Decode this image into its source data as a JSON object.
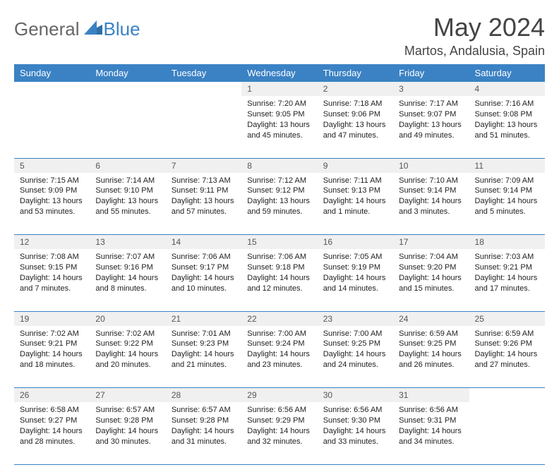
{
  "logo": {
    "text_a": "General",
    "text_b": "Blue"
  },
  "title": "May 2024",
  "location": "Martos, Andalusia, Spain",
  "colors": {
    "header_bg": "#3b82c4",
    "header_fg": "#ffffff",
    "daynum_bg": "#f0f0f0",
    "row_border": "#3b82c4",
    "body_text": "#222222"
  },
  "day_headers": [
    "Sunday",
    "Monday",
    "Tuesday",
    "Wednesday",
    "Thursday",
    "Friday",
    "Saturday"
  ],
  "weeks": [
    {
      "nums": [
        "",
        "",
        "",
        "1",
        "2",
        "3",
        "4"
      ],
      "cells": [
        {
          "sunrise": "",
          "sunset": "",
          "daylight": ""
        },
        {
          "sunrise": "",
          "sunset": "",
          "daylight": ""
        },
        {
          "sunrise": "",
          "sunset": "",
          "daylight": ""
        },
        {
          "sunrise": "Sunrise: 7:20 AM",
          "sunset": "Sunset: 9:05 PM",
          "daylight": "Daylight: 13 hours and 45 minutes."
        },
        {
          "sunrise": "Sunrise: 7:18 AM",
          "sunset": "Sunset: 9:06 PM",
          "daylight": "Daylight: 13 hours and 47 minutes."
        },
        {
          "sunrise": "Sunrise: 7:17 AM",
          "sunset": "Sunset: 9:07 PM",
          "daylight": "Daylight: 13 hours and 49 minutes."
        },
        {
          "sunrise": "Sunrise: 7:16 AM",
          "sunset": "Sunset: 9:08 PM",
          "daylight": "Daylight: 13 hours and 51 minutes."
        }
      ]
    },
    {
      "nums": [
        "5",
        "6",
        "7",
        "8",
        "9",
        "10",
        "11"
      ],
      "cells": [
        {
          "sunrise": "Sunrise: 7:15 AM",
          "sunset": "Sunset: 9:09 PM",
          "daylight": "Daylight: 13 hours and 53 minutes."
        },
        {
          "sunrise": "Sunrise: 7:14 AM",
          "sunset": "Sunset: 9:10 PM",
          "daylight": "Daylight: 13 hours and 55 minutes."
        },
        {
          "sunrise": "Sunrise: 7:13 AM",
          "sunset": "Sunset: 9:11 PM",
          "daylight": "Daylight: 13 hours and 57 minutes."
        },
        {
          "sunrise": "Sunrise: 7:12 AM",
          "sunset": "Sunset: 9:12 PM",
          "daylight": "Daylight: 13 hours and 59 minutes."
        },
        {
          "sunrise": "Sunrise: 7:11 AM",
          "sunset": "Sunset: 9:13 PM",
          "daylight": "Daylight: 14 hours and 1 minute."
        },
        {
          "sunrise": "Sunrise: 7:10 AM",
          "sunset": "Sunset: 9:14 PM",
          "daylight": "Daylight: 14 hours and 3 minutes."
        },
        {
          "sunrise": "Sunrise: 7:09 AM",
          "sunset": "Sunset: 9:14 PM",
          "daylight": "Daylight: 14 hours and 5 minutes."
        }
      ]
    },
    {
      "nums": [
        "12",
        "13",
        "14",
        "15",
        "16",
        "17",
        "18"
      ],
      "cells": [
        {
          "sunrise": "Sunrise: 7:08 AM",
          "sunset": "Sunset: 9:15 PM",
          "daylight": "Daylight: 14 hours and 7 minutes."
        },
        {
          "sunrise": "Sunrise: 7:07 AM",
          "sunset": "Sunset: 9:16 PM",
          "daylight": "Daylight: 14 hours and 8 minutes."
        },
        {
          "sunrise": "Sunrise: 7:06 AM",
          "sunset": "Sunset: 9:17 PM",
          "daylight": "Daylight: 14 hours and 10 minutes."
        },
        {
          "sunrise": "Sunrise: 7:06 AM",
          "sunset": "Sunset: 9:18 PM",
          "daylight": "Daylight: 14 hours and 12 minutes."
        },
        {
          "sunrise": "Sunrise: 7:05 AM",
          "sunset": "Sunset: 9:19 PM",
          "daylight": "Daylight: 14 hours and 14 minutes."
        },
        {
          "sunrise": "Sunrise: 7:04 AM",
          "sunset": "Sunset: 9:20 PM",
          "daylight": "Daylight: 14 hours and 15 minutes."
        },
        {
          "sunrise": "Sunrise: 7:03 AM",
          "sunset": "Sunset: 9:21 PM",
          "daylight": "Daylight: 14 hours and 17 minutes."
        }
      ]
    },
    {
      "nums": [
        "19",
        "20",
        "21",
        "22",
        "23",
        "24",
        "25"
      ],
      "cells": [
        {
          "sunrise": "Sunrise: 7:02 AM",
          "sunset": "Sunset: 9:21 PM",
          "daylight": "Daylight: 14 hours and 18 minutes."
        },
        {
          "sunrise": "Sunrise: 7:02 AM",
          "sunset": "Sunset: 9:22 PM",
          "daylight": "Daylight: 14 hours and 20 minutes."
        },
        {
          "sunrise": "Sunrise: 7:01 AM",
          "sunset": "Sunset: 9:23 PM",
          "daylight": "Daylight: 14 hours and 21 minutes."
        },
        {
          "sunrise": "Sunrise: 7:00 AM",
          "sunset": "Sunset: 9:24 PM",
          "daylight": "Daylight: 14 hours and 23 minutes."
        },
        {
          "sunrise": "Sunrise: 7:00 AM",
          "sunset": "Sunset: 9:25 PM",
          "daylight": "Daylight: 14 hours and 24 minutes."
        },
        {
          "sunrise": "Sunrise: 6:59 AM",
          "sunset": "Sunset: 9:25 PM",
          "daylight": "Daylight: 14 hours and 26 minutes."
        },
        {
          "sunrise": "Sunrise: 6:59 AM",
          "sunset": "Sunset: 9:26 PM",
          "daylight": "Daylight: 14 hours and 27 minutes."
        }
      ]
    },
    {
      "nums": [
        "26",
        "27",
        "28",
        "29",
        "30",
        "31",
        ""
      ],
      "cells": [
        {
          "sunrise": "Sunrise: 6:58 AM",
          "sunset": "Sunset: 9:27 PM",
          "daylight": "Daylight: 14 hours and 28 minutes."
        },
        {
          "sunrise": "Sunrise: 6:57 AM",
          "sunset": "Sunset: 9:28 PM",
          "daylight": "Daylight: 14 hours and 30 minutes."
        },
        {
          "sunrise": "Sunrise: 6:57 AM",
          "sunset": "Sunset: 9:28 PM",
          "daylight": "Daylight: 14 hours and 31 minutes."
        },
        {
          "sunrise": "Sunrise: 6:56 AM",
          "sunset": "Sunset: 9:29 PM",
          "daylight": "Daylight: 14 hours and 32 minutes."
        },
        {
          "sunrise": "Sunrise: 6:56 AM",
          "sunset": "Sunset: 9:30 PM",
          "daylight": "Daylight: 14 hours and 33 minutes."
        },
        {
          "sunrise": "Sunrise: 6:56 AM",
          "sunset": "Sunset: 9:31 PM",
          "daylight": "Daylight: 14 hours and 34 minutes."
        },
        {
          "sunrise": "",
          "sunset": "",
          "daylight": ""
        }
      ]
    }
  ]
}
